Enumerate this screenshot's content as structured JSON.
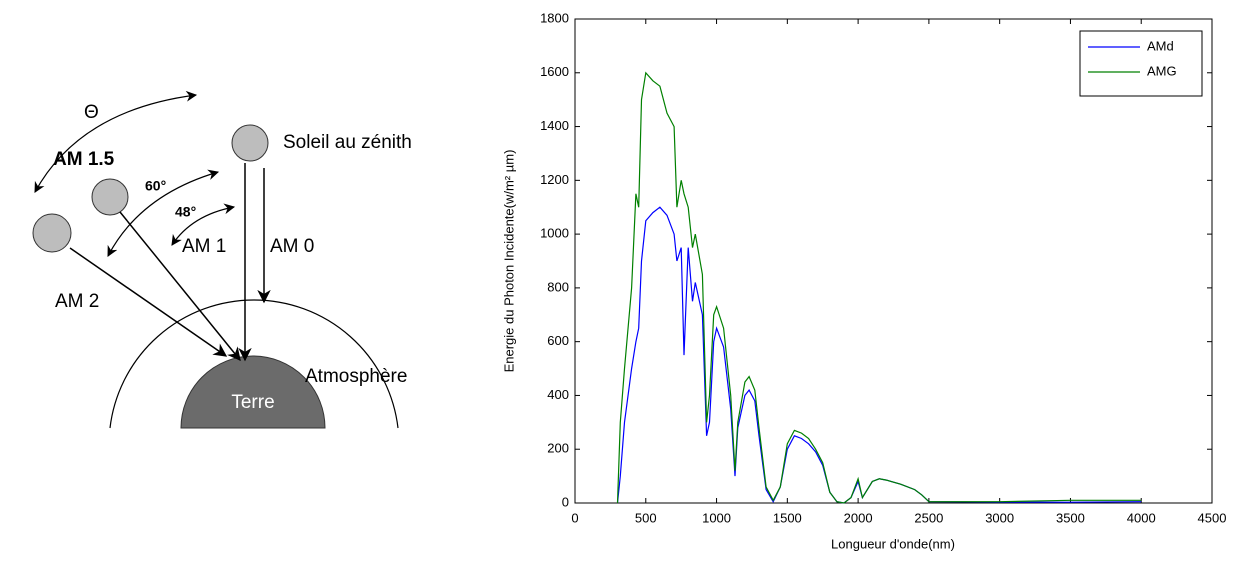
{
  "diagram": {
    "theta": "Θ",
    "am15": "AM 1.5",
    "angle60": "60°",
    "angle48": "48°",
    "zenith": "Soleil au zénith",
    "am1": "AM 1",
    "am0": "AM 0",
    "am2": "AM 2",
    "atmosphere": "Atmosphère",
    "earth": "Terre"
  },
  "chart_data": {
    "type": "line",
    "xlabel": "Longueur d'onde(nm)",
    "ylabel": "Energie du Photon Incidente(w/m² µm)",
    "xlim": [
      0,
      4500
    ],
    "ylim": [
      0,
      1800
    ],
    "xticks": [
      0,
      500,
      1000,
      1500,
      2000,
      2500,
      3000,
      3500,
      4000,
      4500
    ],
    "yticks": [
      0,
      200,
      400,
      600,
      800,
      1000,
      1200,
      1400,
      1600,
      1800
    ],
    "grid": false,
    "legend": "upper right",
    "x": [
      300,
      320,
      350,
      400,
      430,
      450,
      470,
      500,
      550,
      600,
      650,
      700,
      720,
      750,
      770,
      800,
      830,
      850,
      900,
      930,
      950,
      980,
      1000,
      1050,
      1100,
      1130,
      1150,
      1200,
      1230,
      1270,
      1300,
      1350,
      1400,
      1450,
      1500,
      1550,
      1600,
      1650,
      1700,
      1750,
      1800,
      1850,
      1900,
      1950,
      2000,
      2030,
      2100,
      2150,
      2200,
      2300,
      2400,
      2450,
      2500,
      3000,
      3500,
      4000
    ],
    "series": [
      {
        "name": "AMd",
        "color": "#0000ff",
        "values": [
          0,
          100,
          300,
          500,
          600,
          650,
          900,
          1050,
          1080,
          1100,
          1070,
          1000,
          900,
          950,
          550,
          950,
          750,
          820,
          700,
          250,
          300,
          600,
          650,
          580,
          350,
          100,
          280,
          400,
          420,
          380,
          250,
          50,
          5,
          60,
          200,
          250,
          240,
          220,
          190,
          140,
          40,
          5,
          0,
          20,
          80,
          20,
          80,
          90,
          85,
          70,
          50,
          30,
          5,
          3,
          3,
          5
        ]
      },
      {
        "name": "AMG",
        "color": "#008000",
        "values": [
          0,
          300,
          500,
          800,
          1150,
          1100,
          1500,
          1600,
          1570,
          1550,
          1450,
          1400,
          1100,
          1200,
          1150,
          1100,
          950,
          1000,
          850,
          300,
          400,
          700,
          730,
          650,
          400,
          120,
          300,
          450,
          470,
          420,
          280,
          60,
          10,
          60,
          220,
          270,
          260,
          240,
          200,
          150,
          40,
          5,
          0,
          20,
          90,
          20,
          80,
          90,
          85,
          70,
          50,
          30,
          5,
          5,
          10,
          10
        ]
      }
    ]
  }
}
